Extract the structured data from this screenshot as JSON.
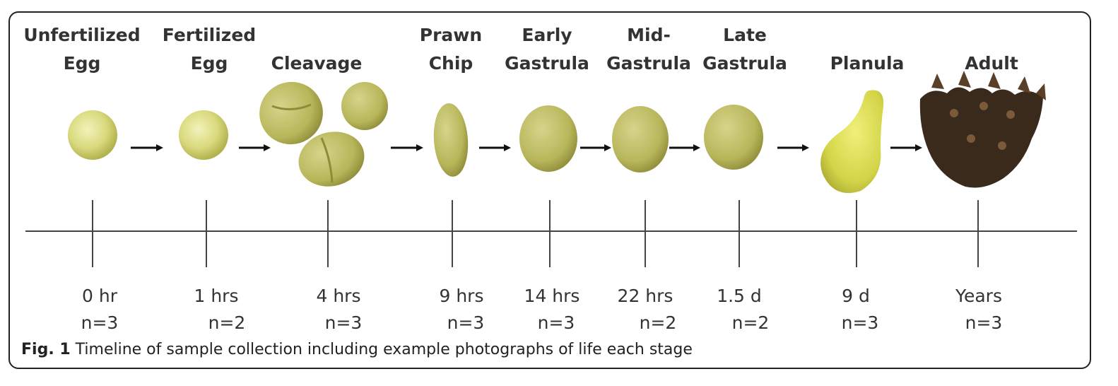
{
  "stages": [
    {
      "name_lines": [
        "Unfertilized",
        "Egg"
      ],
      "time": "0 hr",
      "n": "n=3"
    },
    {
      "name_lines": [
        "Fertilized",
        "Egg"
      ],
      "time": "1 hrs",
      "n": "n=2"
    },
    {
      "name_lines": [
        "",
        "Cleavage"
      ],
      "time": "4 hrs",
      "n": "n=3"
    },
    {
      "name_lines": [
        "Prawn",
        "Chip"
      ],
      "time": "9 hrs",
      "n": "n=3"
    },
    {
      "name_lines": [
        "Early",
        "Gastrula"
      ],
      "time": "14 hrs",
      "n": "n=3"
    },
    {
      "name_lines": [
        "Mid-",
        "Gastrula"
      ],
      "time": "22 hrs",
      "n": "n=2"
    },
    {
      "name_lines": [
        "Late",
        "Gastrula"
      ],
      "time": "1.5 d",
      "n": "n=2"
    },
    {
      "name_lines": [
        "",
        "Planula"
      ],
      "time": "9 d",
      "n": "n=3"
    },
    {
      "name_lines": [
        "",
        "Adult"
      ],
      "time": "Years",
      "n": "n=3"
    }
  ],
  "caption": {
    "label": "Fig. 1",
    "text": " Timeline of sample collection including example photographs of life each stage"
  },
  "colors": {
    "embryo_light": "#e6e69a",
    "embryo_dark": "#b5b54e",
    "coral": "#3a2a1c",
    "line": "#444444"
  }
}
